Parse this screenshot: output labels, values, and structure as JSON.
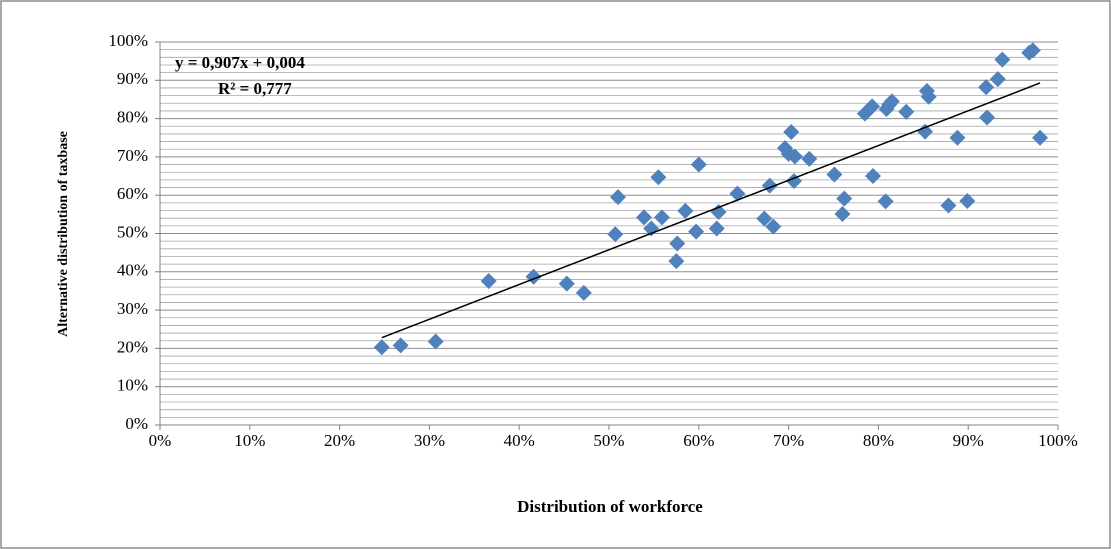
{
  "chart_data": {
    "type": "scatter",
    "x_label": "Distribution of workforce",
    "y_label": "Alternative distribution of taxbase",
    "annotations": [
      "y = 0,907x + 0,004",
      "R² = 0,777"
    ],
    "xlim": [
      0,
      100
    ],
    "ylim": [
      0,
      100
    ],
    "xticks": [
      {
        "value": 0,
        "label": "0%"
      },
      {
        "value": 10,
        "label": "10%"
      },
      {
        "value": 20,
        "label": "20%"
      },
      {
        "value": 30,
        "label": "30%"
      },
      {
        "value": 40,
        "label": "40%"
      },
      {
        "value": 50,
        "label": "50%"
      },
      {
        "value": 60,
        "label": "60%"
      },
      {
        "value": 70,
        "label": "70%"
      },
      {
        "value": 80,
        "label": "80%"
      },
      {
        "value": 90,
        "label": "90%"
      },
      {
        "value": 100,
        "label": "100%"
      }
    ],
    "yticks": [
      {
        "value": 0,
        "label": "0%"
      },
      {
        "value": 10,
        "label": "10%"
      },
      {
        "value": 20,
        "label": "20%"
      },
      {
        "value": 30,
        "label": "30%"
      },
      {
        "value": 40,
        "label": "40%"
      },
      {
        "value": 50,
        "label": "50%"
      },
      {
        "value": 60,
        "label": "60%"
      },
      {
        "value": 70,
        "label": "70%"
      },
      {
        "value": 80,
        "label": "80%"
      },
      {
        "value": 90,
        "label": "90%"
      },
      {
        "value": 100,
        "label": "100%"
      }
    ],
    "y_minor_grid": [
      2,
      4,
      6,
      8,
      12,
      14,
      16,
      18,
      22,
      24,
      26,
      28,
      32,
      34,
      36,
      38,
      42,
      44,
      46,
      48,
      52,
      54,
      56,
      58,
      62,
      64,
      66,
      68,
      72,
      74,
      76,
      78,
      82,
      84,
      86,
      88,
      92,
      94,
      96,
      98
    ],
    "grid": true,
    "series": [
      {
        "color": "#4f81bd",
        "x": [
          24.7,
          26.8,
          30.7,
          36.6,
          41.6,
          45.3,
          47.2,
          50.7,
          51.0,
          53.9,
          54.7,
          55.5,
          55.9,
          57.5,
          57.6,
          58.5,
          59.7,
          60.0,
          62.0,
          62.2,
          64.3,
          67.3,
          67.9,
          68.3,
          69.6,
          70.0,
          70.3,
          70.6,
          70.7,
          72.3,
          75.1,
          76.0,
          76.2,
          78.5,
          79.3,
          79.4,
          80.8,
          80.9,
          81.2,
          81.5,
          83.1,
          85.2,
          85.4,
          85.6,
          87.8,
          88.8,
          89.9,
          92.0,
          92.1,
          93.3,
          93.8,
          96.8,
          97.2,
          98.0
        ],
        "values": [
          20.3,
          20.8,
          21.8,
          37.6,
          38.7,
          36.9,
          34.5,
          49.8,
          59.5,
          54.2,
          51.3,
          64.7,
          54.2,
          42.8,
          47.4,
          55.9,
          50.5,
          68.0,
          51.3,
          55.6,
          60.4,
          53.9,
          62.5,
          51.8,
          72.3,
          70.8,
          76.5,
          63.7,
          70.1,
          69.5,
          65.4,
          55.1,
          59.1,
          81.3,
          83.2,
          65.0,
          58.4,
          82.5,
          83.6,
          84.5,
          81.8,
          76.6,
          87.2,
          85.7,
          57.3,
          75.0,
          58.5,
          88.2,
          80.3,
          90.3,
          95.4,
          97.2,
          97.8,
          75.0
        ]
      }
    ],
    "trendline": {
      "color": "#000000",
      "x": [
        24.7,
        98.0
      ],
      "values": [
        22.8,
        89.3
      ]
    }
  }
}
